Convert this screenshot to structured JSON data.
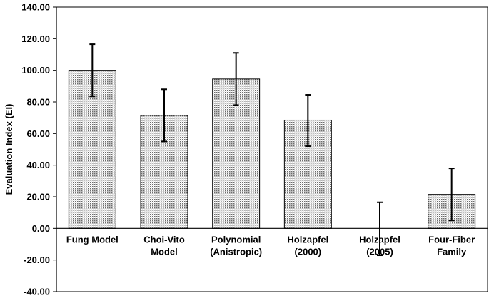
{
  "chart_data": {
    "type": "bar",
    "title": "",
    "xlabel": "",
    "ylabel": "Evaluation Index (EI)",
    "ylim": [
      -40,
      140
    ],
    "yticks": [
      "140.00",
      "120.00",
      "100.00",
      "80.00",
      "60.00",
      "40.00",
      "20.00",
      "0.00",
      "-20.00",
      "-40.00"
    ],
    "ytick_values": [
      140,
      120,
      100,
      80,
      60,
      40,
      20,
      0,
      -20,
      -40
    ],
    "categories": [
      [
        "Fung Model"
      ],
      [
        "Choi-Vito",
        "Model"
      ],
      [
        "Polynomial",
        "(Anistropic)"
      ],
      [
        "Holzapfel",
        "(2000)"
      ],
      [
        "Holzapfel",
        "(2005)"
      ],
      [
        "Four-Fiber",
        "Family"
      ]
    ],
    "values": [
      100,
      71.5,
      94.5,
      68.5,
      0,
      21.5
    ],
    "error_low": [
      83.5,
      55,
      78,
      52,
      -17,
      5
    ],
    "error_high": [
      116.5,
      88,
      111,
      84.5,
      16.5,
      38
    ],
    "grid": false,
    "legend": "none",
    "bar_pattern": "dotted gray fill with black outline"
  }
}
